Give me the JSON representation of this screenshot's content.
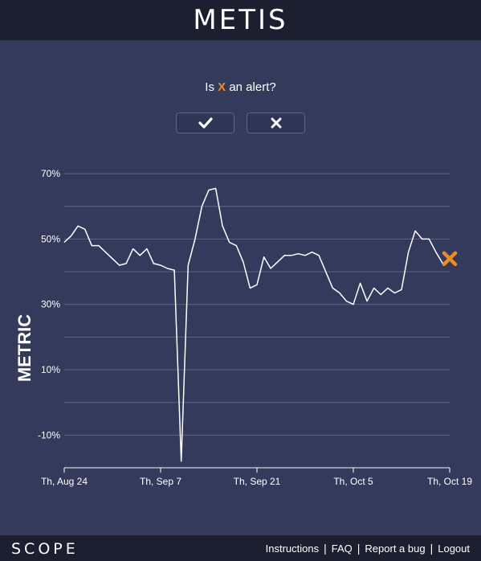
{
  "header": {
    "title": "METIS"
  },
  "prompt": {
    "prefix": "Is",
    "marker": "X",
    "suffix": "an alert?"
  },
  "buttons": {
    "yes_icon": "check-icon",
    "no_icon": "close-icon"
  },
  "colors": {
    "background": "#333a5c",
    "bar": "#1b1f2f",
    "accent": "#f08a24",
    "line": "#ffffff"
  },
  "chart_data": {
    "type": "line",
    "ylabel": "METRIC",
    "y_ticks": [
      "70%",
      "50%",
      "30%",
      "10%",
      "-10%"
    ],
    "y_tick_values": [
      70,
      50,
      30,
      10,
      -10
    ],
    "ylim": [
      -20,
      72
    ],
    "x_tick_labels": [
      "Th, Aug 24",
      "Th, Sep 7",
      "Th, Sep 21",
      "Th, Oct 5",
      "Th, Oct 19"
    ],
    "x_tick_values": [
      0,
      14,
      28,
      42,
      56
    ],
    "xlim": [
      0,
      56
    ],
    "grid": true,
    "series": [
      {
        "x": [
          0,
          1,
          2,
          3,
          4,
          5,
          6,
          7,
          8,
          9,
          10,
          11,
          12,
          13,
          14,
          15,
          16,
          17,
          18,
          19,
          20,
          21,
          22,
          23,
          24,
          25,
          26,
          27,
          28,
          29,
          30,
          31,
          32,
          33,
          34,
          35,
          36,
          37,
          38,
          39,
          40,
          41,
          42,
          43,
          44,
          45,
          46,
          47,
          48,
          49,
          50,
          51,
          52,
          53,
          54,
          55,
          56
        ],
        "values": [
          49,
          51,
          54,
          53,
          48,
          48,
          46,
          44,
          42,
          42.5,
          47,
          45,
          47,
          42.5,
          42,
          41,
          40.5,
          -18,
          42,
          50,
          60,
          65,
          65.5,
          54,
          49,
          48,
          43,
          35,
          36,
          44.5,
          41,
          43,
          45,
          45,
          45.5,
          45,
          46,
          45,
          40,
          35,
          33.5,
          31,
          30,
          36.5,
          31,
          35,
          33,
          35,
          33.5,
          34.5,
          46,
          52.5,
          50,
          50,
          46,
          42.5,
          44
        ]
      }
    ],
    "marker": {
      "x": 56,
      "y": 44,
      "label": "X"
    }
  },
  "footer": {
    "brand": "SCOPE",
    "links": [
      "Instructions",
      "FAQ",
      "Report a bug",
      "Logout"
    ]
  }
}
